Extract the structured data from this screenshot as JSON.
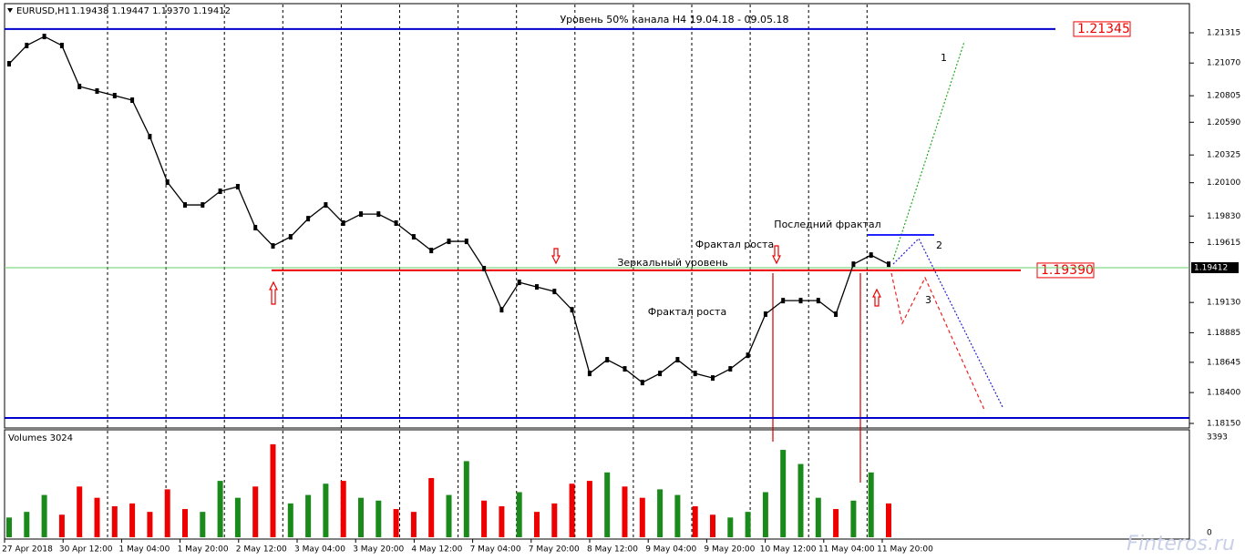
{
  "header": {
    "symbol": "EURUSD,H1",
    "ohlc": "1.19438 1.19447 1.19370 1.19412"
  },
  "annotations": {
    "channel": "Уровень 50% канала H4 19.04.18 - 09.05.18",
    "last_fractal": "Последний фрактал",
    "growth_fractal_1": "Фрактал роста",
    "mirror_level": "Зеркальный уровень",
    "growth_fractal_2": "Фрактал роста",
    "scenario_1": "1",
    "scenario_2": "2",
    "scenario_3": "3"
  },
  "levels": {
    "upper": "1.21345",
    "mirror": "1.19390",
    "current": "1.19412"
  },
  "price_axis": [
    "1.21315",
    "1.21070",
    "1.20805",
    "1.20590",
    "1.20325",
    "1.20100",
    "1.19830",
    "1.19615",
    "1.19130",
    "1.18885",
    "1.18645",
    "1.18400",
    "1.18150"
  ],
  "chart": {
    "closes": [
      1.21064,
      1.21212,
      1.21285,
      1.21212,
      1.2088,
      1.20843,
      1.20806,
      1.20769,
      1.20474,
      1.20105,
      1.1992,
      1.1992,
      1.20031,
      1.20068,
      1.19736,
      1.19588,
      1.19662,
      1.19809,
      1.1992,
      1.19773,
      1.19846,
      1.19846,
      1.19773,
      1.19662,
      1.19551,
      1.19625,
      1.19625,
      1.19404,
      1.19071,
      1.19293,
      1.19256,
      1.19219,
      1.19071,
      1.18555,
      1.18666,
      1.18592,
      1.18481,
      1.18555,
      1.18666,
      1.18555,
      1.18518,
      1.18592,
      1.18702,
      1.19035,
      1.19145,
      1.19145,
      1.19145,
      1.19035,
      1.1944,
      1.19514,
      1.1944
    ],
    "volumes": [
      700,
      900,
      1500,
      800,
      1800,
      1400,
      1100,
      1200,
      900,
      1700,
      1000,
      900,
      2000,
      1400,
      1800,
      3300,
      1200,
      1500,
      1900,
      2000,
      1400,
      1300,
      1000,
      900,
      2100,
      1500,
      2700,
      1300,
      1100,
      1600,
      900,
      1200,
      1900,
      2000,
      2300,
      1800,
      1400,
      1700,
      1500,
      1100,
      800,
      700,
      900,
      1600,
      3100,
      2600,
      1400,
      1000,
      1300,
      2300,
      1200
    ]
  },
  "volume_pane": {
    "title": "Volumes 3024",
    "max": "3393",
    "min": "0"
  },
  "time_axis": [
    "27 Apr 2018",
    "30 Apr 12:00",
    "1 May 04:00",
    "1 May 20:00",
    "2 May 12:00",
    "3 May 04:00",
    "3 May 20:00",
    "4 May 12:00",
    "7 May 04:00",
    "7 May 20:00",
    "8 May 12:00",
    "9 May 04:00",
    "9 May 20:00",
    "10 May 12:00",
    "11 May 04:00",
    "11 May 20:00"
  ],
  "watermark": "Finteros.ru"
}
